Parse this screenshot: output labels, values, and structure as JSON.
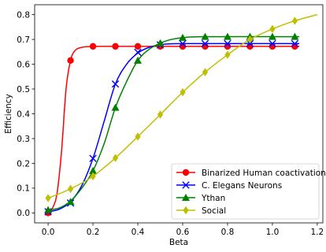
{
  "chart_data": {
    "type": "line",
    "title": "",
    "xlabel": "Beta",
    "ylabel": "Efficiency",
    "xlim": [
      -0.06,
      1.225
    ],
    "ylim": [
      -0.04,
      0.84
    ],
    "xticks": [
      0.0,
      0.2,
      0.4,
      0.6,
      0.8,
      1.0,
      1.2
    ],
    "xtick_labels": [
      "0.0",
      "0.2",
      "0.4",
      "0.6",
      "0.8",
      "1.0",
      "1.2"
    ],
    "yticks": [
      0.0,
      0.1,
      0.2,
      0.3,
      0.4,
      0.5,
      0.6,
      0.7,
      0.8
    ],
    "ytick_labels": [
      "0.0",
      "0.1",
      "0.2",
      "0.3",
      "0.4",
      "0.5",
      "0.6",
      "0.7",
      "0.8"
    ],
    "grid": false,
    "legend_position": "lower-right",
    "series": [
      {
        "name": "Binarized Human coactivation",
        "color": "#ff0000",
        "marker": "circle",
        "curve": [
          [
            0.0,
            0.0
          ],
          [
            0.02,
            0.02
          ],
          [
            0.04,
            0.08
          ],
          [
            0.06,
            0.25
          ],
          [
            0.08,
            0.5
          ],
          [
            0.1,
            0.615
          ],
          [
            0.12,
            0.655
          ],
          [
            0.15,
            0.668
          ],
          [
            0.2,
            0.672
          ],
          [
            0.3,
            0.672
          ],
          [
            1.12,
            0.672
          ]
        ],
        "markers": [
          [
            0.0,
            0.0
          ],
          [
            0.1,
            0.615
          ],
          [
            0.2,
            0.672
          ],
          [
            0.3,
            0.672
          ],
          [
            0.4,
            0.672
          ],
          [
            0.5,
            0.672
          ],
          [
            0.6,
            0.672
          ],
          [
            0.7,
            0.672
          ],
          [
            0.8,
            0.672
          ],
          [
            0.9,
            0.672
          ],
          [
            1.0,
            0.672
          ],
          [
            1.1,
            0.672
          ]
        ]
      },
      {
        "name": "C. Elegans Neurons",
        "color": "#0000ff",
        "marker": "x",
        "curve": [
          [
            0.0,
            0.005
          ],
          [
            0.05,
            0.015
          ],
          [
            0.1,
            0.045
          ],
          [
            0.15,
            0.11
          ],
          [
            0.2,
            0.22
          ],
          [
            0.25,
            0.37
          ],
          [
            0.3,
            0.52
          ],
          [
            0.35,
            0.6
          ],
          [
            0.4,
            0.645
          ],
          [
            0.45,
            0.668
          ],
          [
            0.5,
            0.678
          ],
          [
            0.6,
            0.683
          ],
          [
            1.12,
            0.683
          ]
        ],
        "markers": [
          [
            0.0,
            0.005
          ],
          [
            0.1,
            0.04
          ],
          [
            0.2,
            0.22
          ],
          [
            0.3,
            0.52
          ],
          [
            0.4,
            0.648
          ],
          [
            0.5,
            0.678
          ],
          [
            0.6,
            0.683
          ],
          [
            0.7,
            0.683
          ],
          [
            0.8,
            0.683
          ],
          [
            0.9,
            0.683
          ],
          [
            1.0,
            0.683
          ],
          [
            1.1,
            0.683
          ]
        ]
      },
      {
        "name": "Ythan",
        "color": "#008000",
        "marker": "triangle-up",
        "curve": [
          [
            0.0,
            0.012
          ],
          [
            0.05,
            0.02
          ],
          [
            0.1,
            0.048
          ],
          [
            0.15,
            0.1
          ],
          [
            0.2,
            0.17
          ],
          [
            0.25,
            0.28
          ],
          [
            0.3,
            0.425
          ],
          [
            0.35,
            0.53
          ],
          [
            0.4,
            0.615
          ],
          [
            0.45,
            0.66
          ],
          [
            0.5,
            0.685
          ],
          [
            0.55,
            0.7
          ],
          [
            0.6,
            0.707
          ],
          [
            0.7,
            0.711
          ],
          [
            1.12,
            0.711
          ]
        ],
        "markers": [
          [
            0.0,
            0.012
          ],
          [
            0.1,
            0.045
          ],
          [
            0.2,
            0.17
          ],
          [
            0.3,
            0.425
          ],
          [
            0.4,
            0.615
          ],
          [
            0.5,
            0.685
          ],
          [
            0.6,
            0.707
          ],
          [
            0.7,
            0.711
          ],
          [
            0.8,
            0.711
          ],
          [
            0.9,
            0.711
          ],
          [
            1.0,
            0.711
          ],
          [
            1.1,
            0.711
          ]
        ]
      },
      {
        "name": "Social",
        "color": "#bfbf00",
        "marker": "diamond",
        "curve": [
          [
            0.0,
            0.06
          ],
          [
            0.1,
            0.097
          ],
          [
            0.2,
            0.148
          ],
          [
            0.3,
            0.222
          ],
          [
            0.4,
            0.308
          ],
          [
            0.5,
            0.397
          ],
          [
            0.6,
            0.487
          ],
          [
            0.7,
            0.568
          ],
          [
            0.8,
            0.638
          ],
          [
            0.9,
            0.7
          ],
          [
            1.0,
            0.742
          ],
          [
            1.1,
            0.775
          ],
          [
            1.2,
            0.8
          ]
        ],
        "markers": [
          [
            0.0,
            0.06
          ],
          [
            0.1,
            0.097
          ],
          [
            0.2,
            0.148
          ],
          [
            0.3,
            0.222
          ],
          [
            0.4,
            0.308
          ],
          [
            0.5,
            0.397
          ],
          [
            0.6,
            0.487
          ],
          [
            0.7,
            0.568
          ],
          [
            0.8,
            0.638
          ],
          [
            0.9,
            0.7
          ],
          [
            1.0,
            0.742
          ],
          [
            1.1,
            0.775
          ]
        ]
      }
    ]
  }
}
